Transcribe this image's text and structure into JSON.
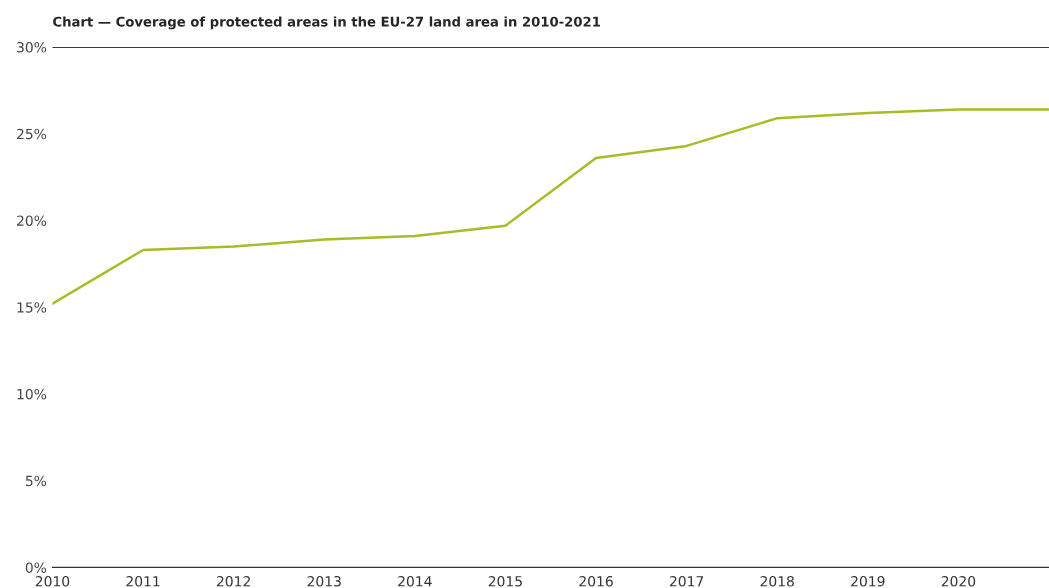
{
  "chart_data": {
    "type": "line",
    "title": "Chart — Coverage of protected areas in the EU-27 land area in 2010-2021",
    "x": [
      2010,
      2011,
      2012,
      2013,
      2014,
      2015,
      2016,
      2017,
      2018,
      2019,
      2020,
      2021
    ],
    "series": [
      {
        "color": "#a9bb26",
        "values": [
          15.2,
          18.3,
          18.5,
          18.9,
          19.1,
          19.7,
          23.6,
          24.3,
          25.9,
          26.2,
          26.4,
          26.4
        ]
      }
    ],
    "xlim": [
      2010,
      2021
    ],
    "xticks": [
      2010,
      2011,
      2012,
      2013,
      2014,
      2015,
      2016,
      2017,
      2018,
      2019,
      2020
    ],
    "ylim": [
      0,
      30
    ],
    "yticks": [
      {
        "value": 0,
        "label": "0%"
      },
      {
        "value": 5,
        "label": "5%"
      },
      {
        "value": 10,
        "label": "10%"
      },
      {
        "value": 15,
        "label": "15%"
      },
      {
        "value": 20,
        "label": "20%"
      },
      {
        "value": 25,
        "label": "25%"
      },
      {
        "value": 30,
        "label": "30%"
      }
    ],
    "ref_lines": [
      {
        "axis": "y",
        "value": 30,
        "label": null,
        "color": "#1f3e68"
      }
    ],
    "grid": false,
    "legend": false,
    "marker": "none",
    "line_style": "solid"
  }
}
